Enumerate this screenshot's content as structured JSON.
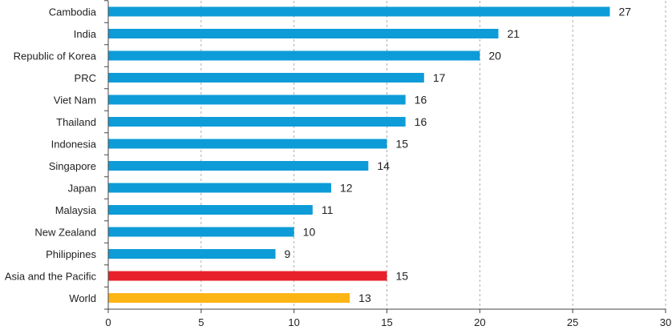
{
  "chart_data": {
    "type": "bar",
    "orientation": "horizontal",
    "title": "",
    "xlabel": "",
    "ylabel": "",
    "xlim": [
      0,
      30
    ],
    "xticks": [
      0,
      5,
      10,
      15,
      20,
      25,
      30
    ],
    "grid": "vertical-dashed",
    "categories": [
      "Cambodia",
      "India",
      "Republic of Korea",
      "PRC",
      "Viet Nam",
      "Thailand",
      "Indonesia",
      "Singapore",
      "Japan",
      "Malaysia",
      "New Zealand",
      "Philippines",
      "Asia and the Pacific",
      "World"
    ],
    "values": [
      27,
      21,
      20,
      17,
      16,
      16,
      15,
      14,
      12,
      11,
      10,
      9,
      15,
      13
    ],
    "colors": [
      "#0E9CD8",
      "#0E9CD8",
      "#0E9CD8",
      "#0E9CD8",
      "#0E9CD8",
      "#0E9CD8",
      "#0E9CD8",
      "#0E9CD8",
      "#0E9CD8",
      "#0E9CD8",
      "#0E9CD8",
      "#0E9CD8",
      "#E8202A",
      "#FDB515"
    ]
  }
}
